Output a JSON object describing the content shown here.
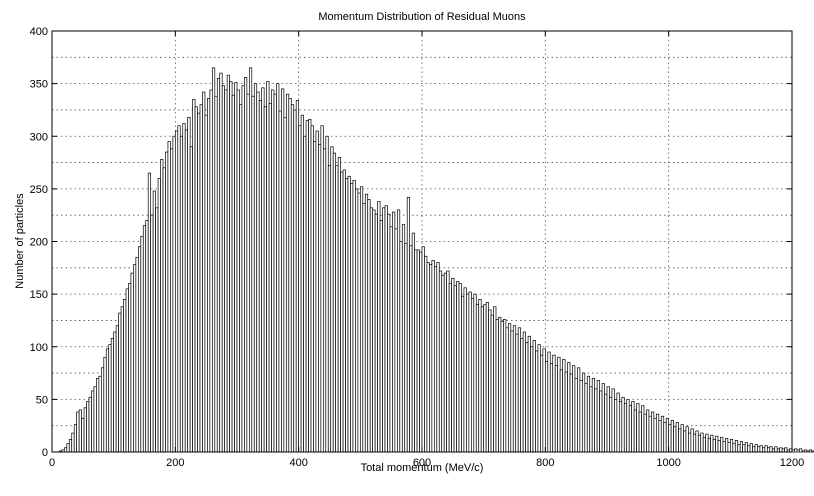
{
  "chart_data": {
    "type": "bar",
    "title": "Momentum Distribution of Residual Muons",
    "xlabel": "Total momentum (MeV/c)",
    "ylabel": "Number of particles",
    "xlim": [
      0,
      1200
    ],
    "ylim": [
      0,
      400
    ],
    "xticks": [
      0,
      200,
      400,
      600,
      800,
      1000,
      1200
    ],
    "yticks": [
      0,
      50,
      100,
      150,
      200,
      250,
      300,
      350,
      400
    ],
    "grid": true,
    "bin_width": 4,
    "x_start": 0,
    "values": [
      0,
      0,
      0,
      1,
      2,
      4,
      8,
      12,
      18,
      26,
      38,
      40,
      32,
      42,
      48,
      52,
      58,
      62,
      70,
      72,
      80,
      90,
      98,
      102,
      108,
      114,
      120,
      132,
      138,
      145,
      155,
      160,
      170,
      178,
      185,
      195,
      205,
      215,
      220,
      265,
      225,
      248,
      232,
      260,
      278,
      270,
      285,
      295,
      288,
      300,
      305,
      310,
      300,
      312,
      306,
      318,
      290,
      335,
      328,
      322,
      330,
      342,
      320,
      336,
      344,
      365,
      338,
      355,
      360,
      348,
      344,
      358,
      352,
      339,
      351,
      344,
      330,
      348,
      356,
      340,
      365,
      338,
      350,
      342,
      334,
      346,
      328,
      352,
      331,
      344,
      340,
      350,
      324,
      345,
      318,
      340,
      336,
      330,
      325,
      334,
      310,
      320,
      300,
      315,
      316,
      310,
      295,
      305,
      292,
      310,
      288,
      300,
      272,
      290,
      284,
      272,
      280,
      266,
      268,
      260,
      262,
      255,
      258,
      250,
      246,
      252,
      236,
      245,
      240,
      232,
      230,
      226,
      238,
      220,
      232,
      234,
      226,
      214,
      228,
      212,
      230,
      200,
      216,
      198,
      242,
      196,
      208,
      192,
      192,
      190,
      195,
      186,
      180,
      178,
      182,
      176,
      180,
      172,
      168,
      170,
      172,
      160,
      165,
      158,
      162,
      160,
      148,
      156,
      150,
      152,
      146,
      150,
      140,
      145,
      138,
      140,
      142,
      135,
      130,
      138,
      126,
      128,
      124,
      126,
      118,
      122,
      115,
      120,
      112,
      118,
      108,
      114,
      104,
      110,
      100,
      106,
      96,
      102,
      92,
      98,
      86,
      95,
      84,
      92,
      82,
      90,
      78,
      88,
      76,
      85,
      74,
      82,
      70,
      80,
      68,
      75,
      65,
      72,
      62,
      70,
      60,
      68,
      58,
      65,
      55,
      62,
      52,
      60,
      50,
      56,
      48,
      52,
      46,
      50,
      44,
      48,
      40,
      46,
      38,
      44,
      36,
      40,
      34,
      38,
      32,
      36,
      30,
      34,
      28,
      32,
      26,
      30,
      24,
      28,
      22,
      26,
      20,
      24,
      18,
      22,
      17,
      20,
      16,
      18,
      14,
      17,
      13,
      16,
      12,
      15,
      11,
      14,
      10,
      13,
      9,
      12,
      8,
      11,
      7,
      10,
      7,
      9,
      6,
      8,
      5,
      7,
      5,
      6,
      4,
      6,
      4,
      5,
      3,
      5,
      3,
      4,
      3,
      4,
      2,
      3,
      2,
      3,
      2,
      3,
      1,
      2,
      1,
      2,
      1,
      2,
      1,
      1,
      1,
      2,
      1,
      1,
      1,
      1,
      0,
      1,
      1,
      1,
      0,
      1,
      0,
      1,
      1,
      0,
      1,
      0,
      0,
      1,
      0,
      1
    ]
  },
  "colors": {
    "bar_fill": "#ffffff",
    "bar_stroke": "#000000",
    "grid": "#555555",
    "axes": "#000000",
    "background": "#ffffff"
  }
}
